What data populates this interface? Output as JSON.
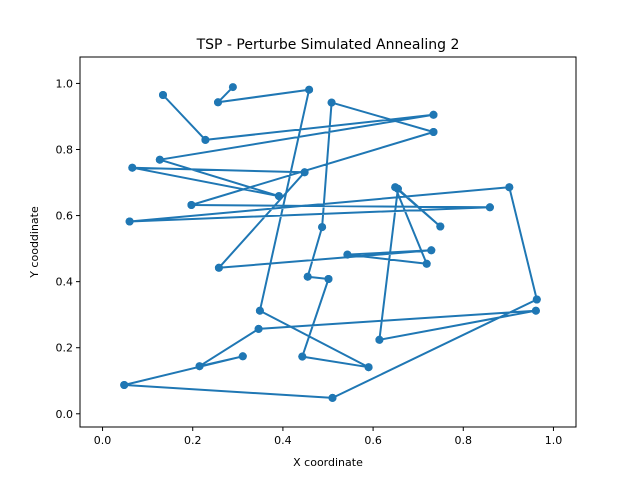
{
  "chart_data": {
    "type": "line",
    "title": "TSP - Perturbe Simulated Annealing 2",
    "xlabel": "X coordinate",
    "ylabel": "Y cooddinate",
    "xlim": [
      -0.05,
      1.05
    ],
    "ylim": [
      -0.04,
      1.08
    ],
    "xticks": [
      0.0,
      0.2,
      0.4,
      0.6,
      0.8,
      1.0
    ],
    "xtick_labels": [
      "0.0",
      "0.2",
      "0.4",
      "0.6",
      "0.8",
      "1.0"
    ],
    "yticks": [
      0.0,
      0.2,
      0.4,
      0.6,
      0.8,
      1.0
    ],
    "ytick_labels": [
      "0.0",
      "0.2",
      "0.4",
      "0.6",
      "0.8",
      "1.0"
    ],
    "grid": false,
    "series": [
      {
        "color": "#1f77b4",
        "marker": "circle",
        "points": [
          [
            0.134,
            0.965
          ],
          [
            0.228,
            0.829
          ],
          [
            0.734,
            0.905
          ],
          [
            0.127,
            0.769
          ],
          [
            0.391,
            0.659
          ],
          [
            0.066,
            0.745
          ],
          [
            0.448,
            0.731
          ],
          [
            0.258,
            0.442
          ],
          [
            0.729,
            0.495
          ],
          [
            0.543,
            0.482
          ],
          [
            0.719,
            0.454
          ],
          [
            0.649,
            0.686
          ],
          [
            0.749,
            0.567
          ],
          [
            0.655,
            0.681
          ],
          [
            0.614,
            0.224
          ],
          [
            0.961,
            0.312
          ],
          [
            0.346,
            0.257
          ],
          [
            0.215,
            0.144
          ],
          [
            0.311,
            0.174
          ],
          [
            0.048,
            0.087
          ],
          [
            0.51,
            0.048
          ],
          [
            0.963,
            0.346
          ],
          [
            0.902,
            0.686
          ],
          [
            0.06,
            0.582
          ],
          [
            0.859,
            0.625
          ],
          [
            0.197,
            0.632
          ],
          [
            0.734,
            0.853
          ],
          [
            0.508,
            0.942
          ],
          [
            0.487,
            0.565
          ],
          [
            0.455,
            0.415
          ],
          [
            0.501,
            0.408
          ],
          [
            0.443,
            0.173
          ],
          [
            0.59,
            0.141
          ],
          [
            0.349,
            0.312
          ],
          [
            0.458,
            0.981
          ],
          [
            0.256,
            0.943
          ],
          [
            0.289,
            0.989
          ],
          [
            0.256,
            0.943
          ],
          [
            0.458,
            0.981
          ],
          [
            0.349,
            0.312
          ],
          [
            0.59,
            0.141
          ],
          [
            0.443,
            0.173
          ],
          [
            0.501,
            0.408
          ],
          [
            0.455,
            0.415
          ],
          [
            0.487,
            0.565
          ],
          [
            0.508,
            0.942
          ],
          [
            0.734,
            0.853
          ],
          [
            0.197,
            0.632
          ],
          [
            0.859,
            0.625
          ],
          [
            0.06,
            0.582
          ],
          [
            0.902,
            0.686
          ],
          [
            0.963,
            0.346
          ],
          [
            0.51,
            0.048
          ],
          [
            0.048,
            0.087
          ],
          [
            0.311,
            0.174
          ],
          [
            0.215,
            0.144
          ],
          [
            0.346,
            0.257
          ],
          [
            0.961,
            0.312
          ],
          [
            0.614,
            0.224
          ],
          [
            0.655,
            0.681
          ],
          [
            0.749,
            0.567
          ],
          [
            0.649,
            0.686
          ],
          [
            0.719,
            0.454
          ],
          [
            0.543,
            0.482
          ],
          [
            0.729,
            0.495
          ],
          [
            0.258,
            0.442
          ],
          [
            0.448,
            0.731
          ],
          [
            0.066,
            0.745
          ],
          [
            0.391,
            0.659
          ],
          [
            0.127,
            0.769
          ],
          [
            0.734,
            0.905
          ],
          [
            0.228,
            0.829
          ],
          [
            0.134,
            0.965
          ]
        ]
      }
    ]
  }
}
